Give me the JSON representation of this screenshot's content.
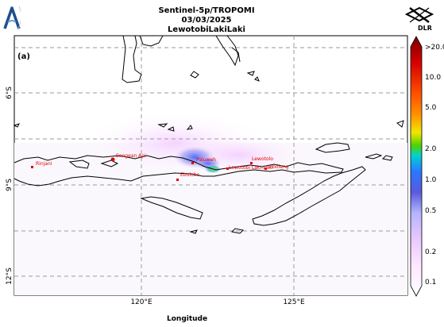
{
  "title": {
    "line1": "Sentinel-5p/TROPOMI",
    "line2": "03/03/2025",
    "line3": "LewotobiLakiLaki"
  },
  "logo_right_label": "DLR",
  "panel_label": "(a)",
  "axes": {
    "xlabel": "Longitude",
    "x_ticks": [
      "120°E",
      "125°E"
    ],
    "y_ticks": [
      "6°S",
      "9°S",
      "12°S"
    ]
  },
  "colorbar": {
    "ticks": [
      ">20.0",
      "10.0",
      "5.0",
      "2.0",
      "1.0",
      "0.5",
      "0.2",
      "0.1"
    ],
    "colors": [
      "#7a0000",
      "#d40000",
      "#ff8a00",
      "#f2e600",
      "#50d000",
      "#00d2d2",
      "#2a78ff",
      "#5a5adc",
      "#b4b4ff",
      "#ffbbff",
      "#ffffff"
    ]
  },
  "volcanoes": [
    {
      "name": "Rinjani"
    },
    {
      "name": "Sangean Api"
    },
    {
      "name": "Paluweh"
    },
    {
      "name": "Ebulobo"
    },
    {
      "name": "Lewotolo"
    },
    {
      "name": "Lewotobi Laki-Laki"
    },
    {
      "name": "Iliboleng"
    }
  ]
}
